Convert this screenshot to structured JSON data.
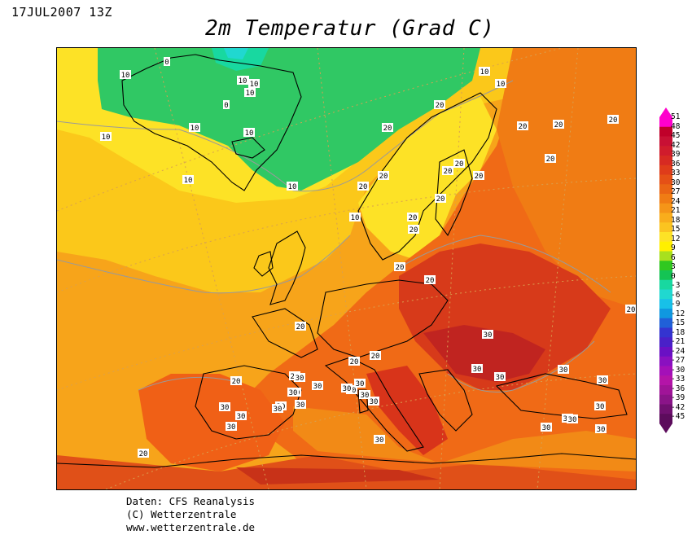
{
  "header": {
    "date": "17JUL2007 13Z",
    "title": "2m Temperatur (Grad C)"
  },
  "footer": {
    "line1": "Daten: CFS Reanalysis",
    "line2": "(C) Wetterzentrale",
    "line3": "www.wetterzentrale.de"
  },
  "legend": {
    "labels": [
      "51",
      "48",
      "45",
      "42",
      "39",
      "36",
      "33",
      "30",
      "27",
      "24",
      "21",
      "18",
      "15",
      "12",
      "9",
      "6",
      "3",
      "0",
      "-3",
      "-6",
      "-9",
      "-12",
      "-15",
      "-18",
      "-21",
      "-24",
      "-27",
      "-30",
      "-33",
      "-36",
      "-39",
      "-42",
      "-45"
    ],
    "colors": [
      "#ff00cc",
      "#c0002a",
      "#c81034",
      "#d01c2c",
      "#d72a22",
      "#df3c1a",
      "#e55016",
      "#ea6514",
      "#f07c14",
      "#f59518",
      "#f9ad1c",
      "#fbc420",
      "#fde226",
      "#fff000",
      "#a8e01e",
      "#30c820",
      "#14c454",
      "#18d8a0",
      "#20d8d0",
      "#18c0e8",
      "#1098e0",
      "#2060d8",
      "#3434d0",
      "#4a20c8",
      "#6a10c4",
      "#8a10c0",
      "#a410b8",
      "#b414a8",
      "#a01498",
      "#8a1488",
      "#701070",
      "#5c0c5c"
    ],
    "palette": {
      "warm_land": "#f05a14",
      "hot": "#c83218",
      "sea_warm": "#f4a018",
      "sea_cool": "#fbd010",
      "polar": "#30c864"
    }
  },
  "map": {
    "contour_labels": [
      "0",
      "0",
      "0",
      "10",
      "10",
      "10",
      "10",
      "10",
      "10",
      "10",
      "10",
      "10",
      "10",
      "10",
      "10",
      "20",
      "20",
      "20",
      "20",
      "20",
      "20",
      "20",
      "20",
      "20",
      "20",
      "20",
      "20",
      "20",
      "20",
      "20",
      "20",
      "20",
      "20",
      "20",
      "20",
      "20",
      "20",
      "20",
      "30",
      "30",
      "30",
      "30",
      "30",
      "30",
      "30",
      "30",
      "30",
      "30",
      "30",
      "30",
      "30",
      "30",
      "30",
      "30",
      "30",
      "30",
      "30",
      "30",
      "30",
      "30",
      "30",
      "30",
      "30",
      "30"
    ]
  }
}
